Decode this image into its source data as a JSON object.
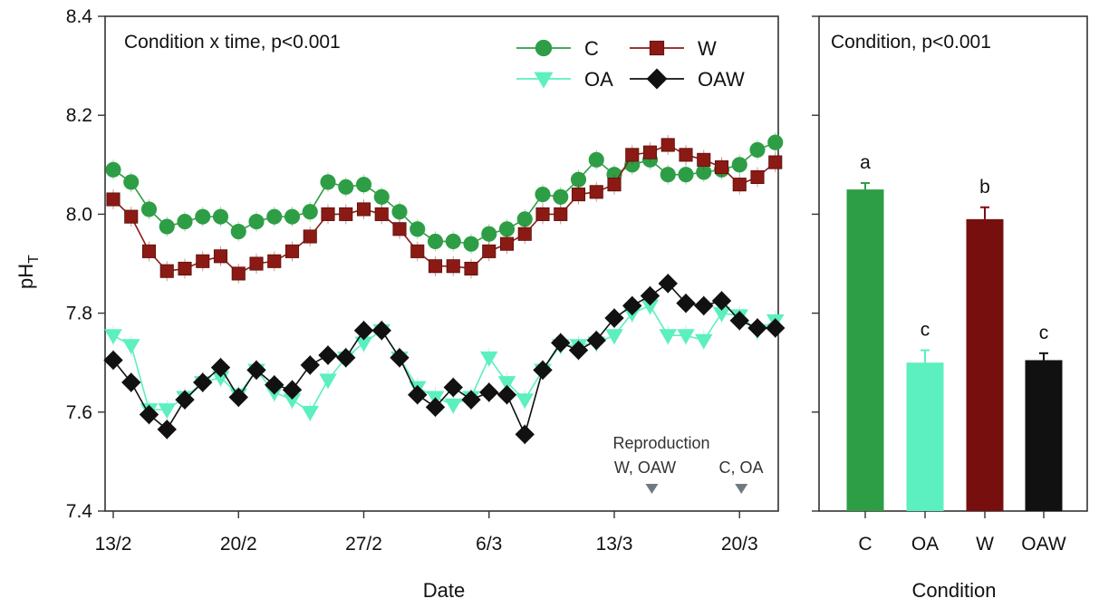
{
  "chart_data": [
    {
      "type": "line",
      "panel_label": "Condition x time, p<0.001",
      "xlabel": "Date",
      "ylabel": "pH",
      "ylabel_subscript": "T",
      "ylim": [
        7.4,
        8.4
      ],
      "yticks": [
        "7.4",
        "7.6",
        "7.8",
        "8.0",
        "8.2",
        "8.4"
      ],
      "xlim": [
        0,
        39
      ],
      "xticks": [
        {
          "label": "13/2",
          "x": 0
        },
        {
          "label": "20/2",
          "x": 7
        },
        {
          "label": "27/2",
          "x": 14
        },
        {
          "label": "6/3",
          "x": 21
        },
        {
          "label": "13/3",
          "x": 28
        },
        {
          "label": "20/3",
          "x": 35
        }
      ],
      "legend_position": "top-right",
      "series": [
        {
          "name": "C",
          "color": "#2e9e46",
          "marker": "circle",
          "x": [
            0,
            1,
            2,
            3,
            4,
            5,
            6,
            7,
            8,
            9,
            10,
            11,
            12,
            13,
            14,
            15,
            16,
            17,
            18,
            19,
            20,
            21,
            22,
            23,
            24,
            25,
            26,
            27,
            28,
            29,
            30,
            31,
            32,
            33,
            34,
            35,
            36,
            37
          ],
          "values": [
            8.09,
            8.065,
            8.01,
            7.975,
            7.985,
            7.995,
            7.995,
            7.965,
            7.985,
            7.995,
            7.995,
            8.005,
            8.065,
            8.055,
            8.06,
            8.035,
            8.005,
            7.97,
            7.945,
            7.945,
            7.94,
            7.96,
            7.97,
            7.99,
            8.04,
            8.035,
            8.07,
            8.11,
            8.08,
            8.1,
            8.11,
            8.08,
            8.08,
            8.085,
            8.09,
            8.1,
            8.13,
            8.145
          ]
        },
        {
          "name": "W",
          "color": "#8b1a14",
          "marker": "square",
          "x": [
            0,
            1,
            2,
            3,
            4,
            5,
            6,
            7,
            8,
            9,
            10,
            11,
            12,
            13,
            14,
            15,
            16,
            17,
            18,
            19,
            20,
            21,
            22,
            23,
            24,
            25,
            26,
            27,
            28,
            29,
            30,
            31,
            32,
            33,
            34,
            35,
            36,
            37
          ],
          "values": [
            8.03,
            7.995,
            7.925,
            7.885,
            7.89,
            7.905,
            7.915,
            7.88,
            7.9,
            7.905,
            7.925,
            7.955,
            8.0,
            8.0,
            8.01,
            8.0,
            7.97,
            7.925,
            7.895,
            7.895,
            7.89,
            7.925,
            7.94,
            7.96,
            8.0,
            8.0,
            8.04,
            8.045,
            8.06,
            8.12,
            8.125,
            8.14,
            8.12,
            8.11,
            8.095,
            8.06,
            8.075,
            8.105
          ]
        },
        {
          "name": "OA",
          "color": "#5cefc0",
          "marker": "triangle-down",
          "x": [
            0,
            1,
            2,
            3,
            4,
            5,
            6,
            7,
            8,
            9,
            10,
            11,
            12,
            13,
            14,
            15,
            16,
            17,
            18,
            19,
            20,
            21,
            22,
            23,
            24,
            25,
            26,
            27,
            28,
            29,
            30,
            31,
            32,
            33,
            34,
            35,
            36,
            37
          ],
          "values": [
            7.755,
            7.735,
            7.605,
            7.605,
            7.63,
            7.66,
            7.67,
            7.635,
            7.685,
            7.64,
            7.625,
            7.6,
            7.665,
            7.71,
            7.74,
            7.765,
            7.71,
            7.65,
            7.63,
            7.615,
            7.63,
            7.71,
            7.66,
            7.625,
            7.685,
            7.735,
            7.735,
            7.74,
            7.755,
            7.8,
            7.815,
            7.755,
            7.755,
            7.745,
            7.8,
            7.795,
            7.765,
            7.785
          ]
        },
        {
          "name": "OAW",
          "color": "#111111",
          "marker": "diamond",
          "x": [
            0,
            1,
            2,
            3,
            4,
            5,
            6,
            7,
            8,
            9,
            10,
            11,
            12,
            13,
            14,
            15,
            16,
            17,
            18,
            19,
            20,
            21,
            22,
            23,
            24,
            25,
            26,
            27,
            28,
            29,
            30,
            31,
            32,
            33,
            34,
            35,
            36,
            37
          ],
          "values": [
            7.705,
            7.66,
            7.595,
            7.565,
            7.625,
            7.66,
            7.69,
            7.63,
            7.685,
            7.655,
            7.645,
            7.695,
            7.715,
            7.71,
            7.765,
            7.765,
            7.71,
            7.635,
            7.61,
            7.65,
            7.625,
            7.64,
            7.635,
            7.555,
            7.685,
            7.74,
            7.725,
            7.745,
            7.79,
            7.815,
            7.835,
            7.86,
            7.82,
            7.815,
            7.825,
            7.785,
            7.77,
            7.77
          ]
        }
      ],
      "annotations": [
        {
          "text": "Reproduction",
          "marker_x": 30.1
        },
        {
          "text": "W, OAW",
          "marker_x": 30.1
        },
        {
          "text": "C, OA",
          "marker_x": 35.1
        }
      ]
    },
    {
      "type": "bar",
      "panel_label": "Condition, p<0.001",
      "xlabel": "Condition",
      "ylim": [
        7.4,
        8.4
      ],
      "categories": [
        "C",
        "OA",
        "W",
        "OAW"
      ],
      "values": [
        8.05,
        7.7,
        7.99,
        7.705
      ],
      "errors": [
        0.013,
        0.025,
        0.024,
        0.014
      ],
      "letters": [
        "a",
        "c",
        "b",
        "c"
      ],
      "colors": [
        "#2e9e46",
        "#5cefc0",
        "#780f0f",
        "#111111"
      ]
    }
  ]
}
